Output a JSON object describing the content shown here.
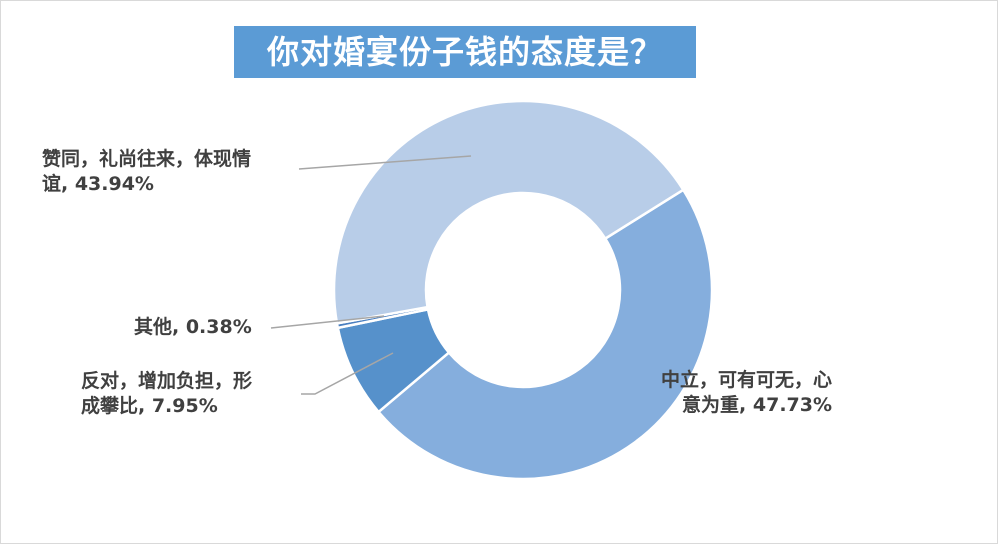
{
  "chart_data": {
    "type": "pie",
    "variant": "donut",
    "title": "你对婚宴份子钱的态度是？",
    "legend": "none",
    "slices": [
      {
        "label": "中立，可有可无，心意为重",
        "value": 47.73,
        "data_label": "中立，可有可无，心\n意为重, 47.73%",
        "color": "#85aedd"
      },
      {
        "label": "反对，增加负担，形成攀比",
        "value": 7.95,
        "data_label": "反对，增加负担，形\n成攀比, 7.95%",
        "color": "#5691cb"
      },
      {
        "label": "其他",
        "value": 0.38,
        "data_label": "其他, 0.38%",
        "color": "#4a7fc0"
      },
      {
        "label": "赞同，礼尚往来，体现情谊",
        "value": 43.94,
        "data_label": "赞同，礼尚往来，体现情\n谊, 43.94%",
        "color": "#b8cde8"
      }
    ]
  },
  "labels": {
    "zhongli_1": "中立，可有可无，心",
    "zhongli_2": "意为重, 47.73%",
    "fandui_1": "反对，增加负担，形",
    "fandui_2": "成攀比, 7.95%",
    "qita": "其他, 0.38%",
    "zantong_1": "赞同，礼尚往来，体现情",
    "zantong_2": "谊, 43.94%"
  }
}
